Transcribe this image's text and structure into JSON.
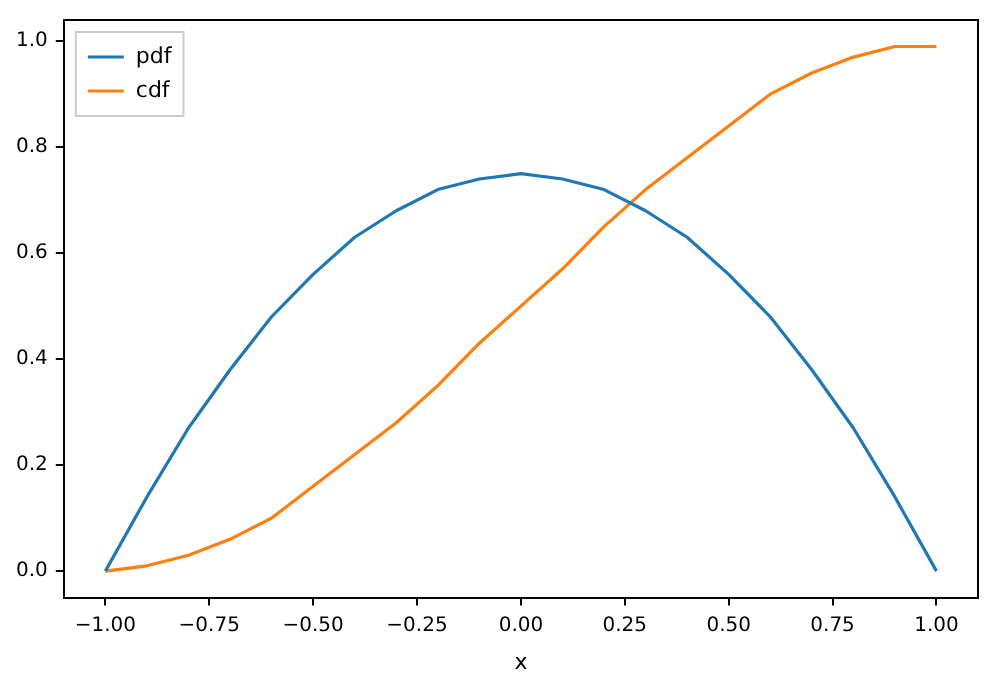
{
  "chart_data": {
    "type": "line",
    "xlabel": "x",
    "legend": "top left",
    "marker": "none",
    "line_style": "solid",
    "grid": false,
    "x": [
      -1,
      -0.9,
      -0.8,
      -0.7,
      -0.6,
      -0.5,
      -0.4,
      -0.3,
      -0.2,
      -0.1,
      0,
      0.1,
      0.2,
      0.3,
      0.4,
      0.5,
      0.6,
      0.7,
      0.8,
      0.9,
      1
    ],
    "series": [
      {
        "name": "pdf",
        "color": "#1f77b4",
        "values": [
          0,
          0.14,
          0.27,
          0.38,
          0.48,
          0.56,
          0.63,
          0.68,
          0.72,
          0.74,
          0.75,
          0.74,
          0.72,
          0.68,
          0.63,
          0.56,
          0.48,
          0.38,
          0.27,
          0.14,
          0
        ]
      },
      {
        "name": "cdf",
        "color": "#ff7f0e",
        "values": [
          0,
          0.01,
          0.03,
          0.06,
          0.1,
          0.16,
          0.22,
          0.28,
          0.35,
          0.43,
          0.5,
          0.57,
          0.65,
          0.72,
          0.78,
          0.84,
          0.9,
          0.94,
          0.97,
          0.99,
          0.99
        ]
      }
    ],
    "xlim": [
      -1.1,
      1.1
    ],
    "ylim": [
      -0.05,
      1.04
    ],
    "xticks": [
      {
        "value": -1,
        "label": "−1.00"
      },
      {
        "value": -0.75,
        "label": "−0.75"
      },
      {
        "value": -0.5,
        "label": "−0.50"
      },
      {
        "value": -0.25,
        "label": "−0.25"
      },
      {
        "value": 0,
        "label": "0.00"
      },
      {
        "value": 0.25,
        "label": "0.25"
      },
      {
        "value": 0.5,
        "label": "0.50"
      },
      {
        "value": 0.75,
        "label": "0.75"
      },
      {
        "value": 1,
        "label": "1.00"
      }
    ],
    "yticks": [
      {
        "value": 0,
        "label": "0.0"
      },
      {
        "value": 0.2,
        "label": "0.2"
      },
      {
        "value": 0.4,
        "label": "0.4"
      },
      {
        "value": 0.6,
        "label": "0.6"
      },
      {
        "value": 0.8,
        "label": "0.8"
      },
      {
        "value": 1,
        "label": "1.0"
      }
    ]
  }
}
